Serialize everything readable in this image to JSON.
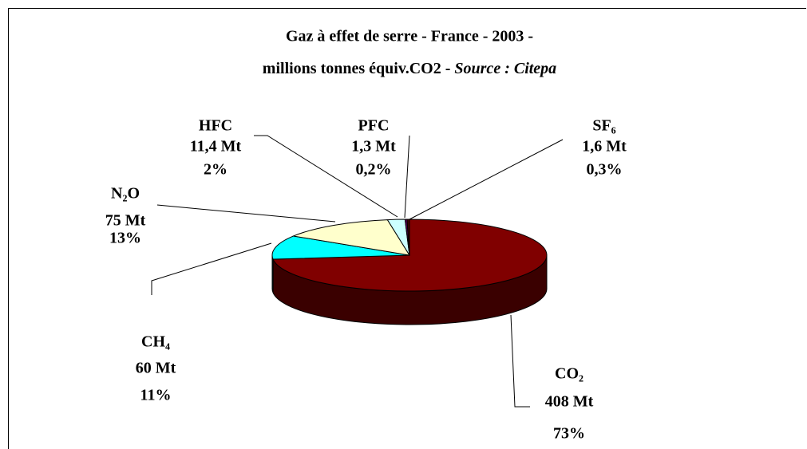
{
  "chart_data": {
    "type": "pie3d",
    "title": "Gaz à effet de serre - France - 2003 -",
    "subtitle": "millions tonnes équiv.CO2 -",
    "source": "Source : Citepa",
    "categories": [
      "CO₂",
      "CH₄",
      "N₂O",
      "HFC",
      "PFC",
      "SF₆"
    ],
    "values": [
      408,
      60,
      75,
      11.4,
      1.3,
      1.6
    ],
    "value_labels": [
      "408 Mt",
      "60 Mt",
      "75 Mt",
      "11,4 Mt",
      "1,3 Mt",
      "1,6 Mt"
    ],
    "shares": [
      73,
      11,
      13,
      2,
      0.2,
      0.3
    ],
    "share_labels": [
      "73%",
      "11%",
      "13%",
      "2%",
      "0,2%",
      "0,3%"
    ],
    "colors": [
      "#800000",
      "#00ffff",
      "#ffffcc",
      "#ccffff",
      "#660066",
      "#400000"
    ]
  }
}
